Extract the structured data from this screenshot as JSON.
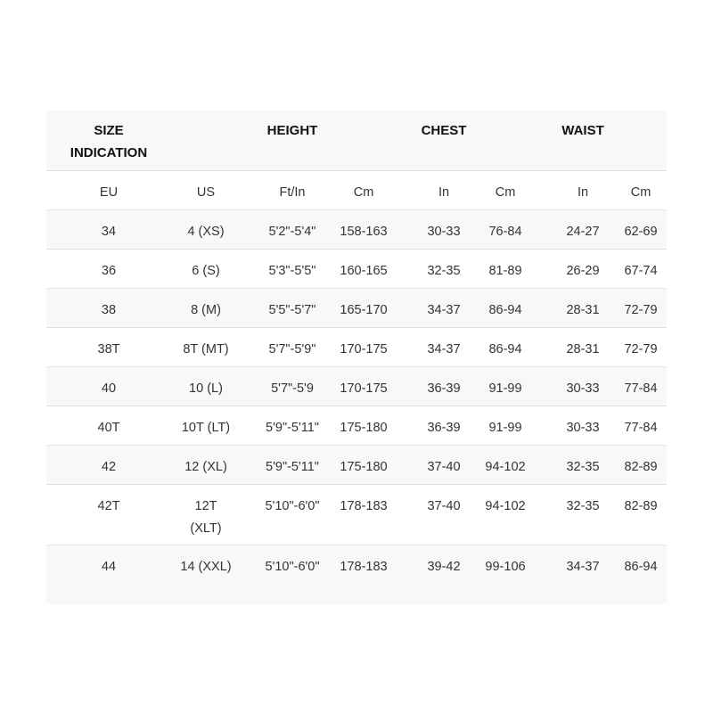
{
  "headers": {
    "size": "SIZE INDICATION",
    "height": "HEIGHT",
    "chest": "CHEST",
    "waist": "WAIST"
  },
  "subheaders": [
    "EU",
    "US",
    "Ft/In",
    "Cm",
    "In",
    "Cm",
    "In",
    "Cm"
  ],
  "rows": [
    [
      "34",
      "4 (XS)",
      "5'2\"-5'4\"",
      "158-163",
      "30-33",
      "76-84",
      "24-27",
      "62-69"
    ],
    [
      "36",
      "6 (S)",
      "5'3\"-5'5\"",
      "160-165",
      "32-35",
      "81-89",
      "26-29",
      "67-74"
    ],
    [
      "38",
      "8 (M)",
      "5'5\"-5'7\"",
      "165-170",
      "34-37",
      "86-94",
      "28-31",
      "72-79"
    ],
    [
      "38T",
      "8T (MT)",
      "5'7\"-5'9\"",
      "170-175",
      "34-37",
      "86-94",
      "28-31",
      "72-79"
    ],
    [
      "40",
      "10 (L)",
      "5'7\"-5'9",
      "170-175",
      "36-39",
      "91-99",
      "30-33",
      "77-84"
    ],
    [
      "40T",
      "10T (LT)",
      "5'9\"-5'11\"",
      "175-180",
      "36-39",
      "91-99",
      "30-33",
      "77-84"
    ],
    [
      "42",
      "12 (XL)",
      "5'9\"-5'11\"",
      "175-180",
      "37-40",
      "94-102",
      "32-35",
      "82-89"
    ],
    [
      "42T",
      "12T (XLT)",
      "5'10\"-6'0\"",
      "178-183",
      "37-40",
      "94-102",
      "32-35",
      "82-89"
    ],
    [
      "44",
      "14 (XXL)",
      "5'10\"-6'0\"",
      "178-183",
      "39-42",
      "99-106",
      "34-37",
      "86-94"
    ]
  ]
}
